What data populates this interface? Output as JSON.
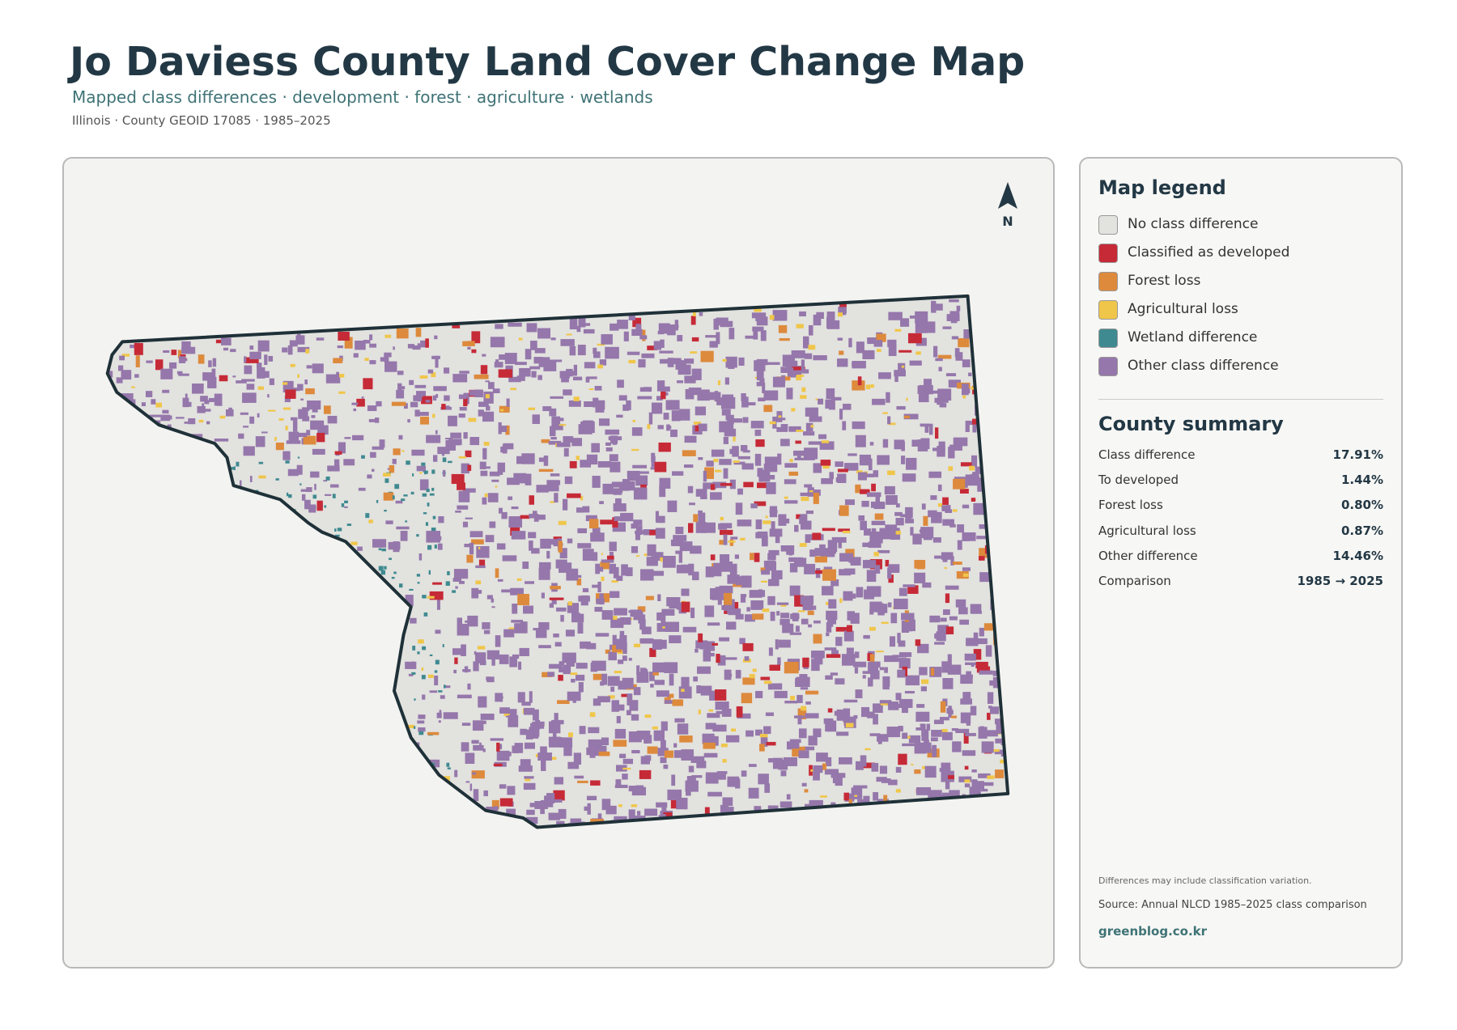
{
  "header": {
    "title": "Jo Daviess County Land Cover Change Map",
    "subtitle": "Mapped class differences · development · forest · agriculture · wetlands",
    "meta": "Illinois · County GEOID 17085 · 1985–2025"
  },
  "map": {
    "north_label": "N"
  },
  "legend": {
    "title": "Map legend",
    "items": [
      {
        "label": "No class difference",
        "color": "#e2e2df"
      },
      {
        "label": "Classified as developed",
        "color": "#c62a37"
      },
      {
        "label": "Forest loss",
        "color": "#dd8a3c"
      },
      {
        "label": "Agricultural loss",
        "color": "#f0c64a"
      },
      {
        "label": "Wetland difference",
        "color": "#3f8a90"
      },
      {
        "label": "Other class difference",
        "color": "#9577ab"
      }
    ]
  },
  "summary": {
    "title": "County summary",
    "rows": [
      {
        "label": "Class difference",
        "value": "17.91%"
      },
      {
        "label": "To developed",
        "value": "1.44%"
      },
      {
        "label": "Forest loss",
        "value": "0.80%"
      },
      {
        "label": "Agricultural loss",
        "value": "0.87%"
      },
      {
        "label": "Other difference",
        "value": "14.46%"
      },
      {
        "label": "Comparison",
        "value": "1985 → 2025"
      }
    ]
  },
  "footer": {
    "note": "Differences may include classification variation.",
    "source": "Source: Annual NLCD 1985–2025 class comparison",
    "site": "greenblog.co.kr"
  }
}
